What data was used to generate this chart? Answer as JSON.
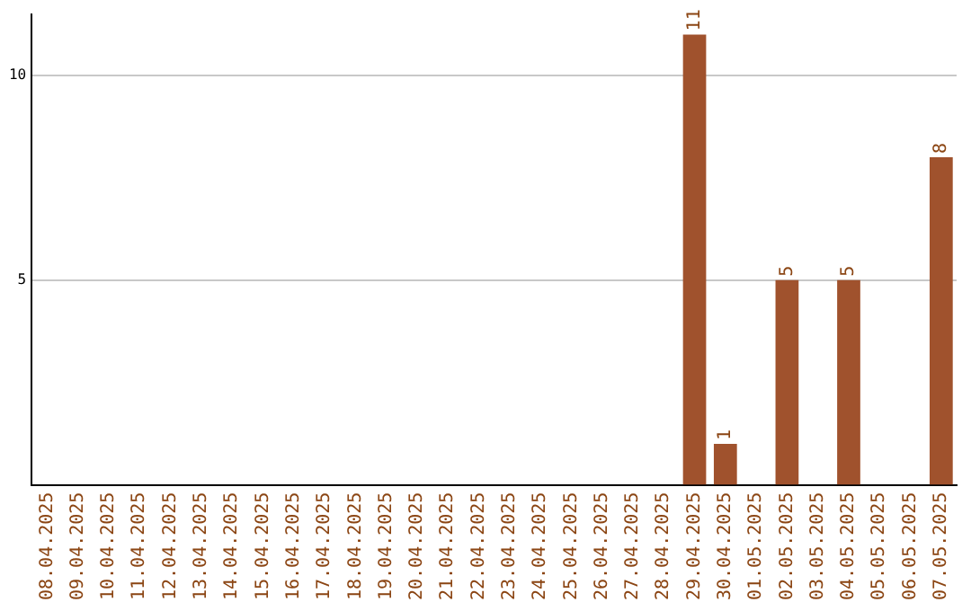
{
  "chart_data": {
    "type": "bar",
    "categories": [
      "08.04.2025",
      "09.04.2025",
      "10.04.2025",
      "11.04.2025",
      "12.04.2025",
      "13.04.2025",
      "14.04.2025",
      "15.04.2025",
      "16.04.2025",
      "17.04.2025",
      "18.04.2025",
      "19.04.2025",
      "20.04.2025",
      "21.04.2025",
      "22.04.2025",
      "23.04.2025",
      "24.04.2025",
      "25.04.2025",
      "26.04.2025",
      "27.04.2025",
      "28.04.2025",
      "29.04.2025",
      "30.04.2025",
      "01.05.2025",
      "02.05.2025",
      "03.05.2025",
      "04.05.2025",
      "05.05.2025",
      "06.05.2025",
      "07.05.2025"
    ],
    "values": [
      0,
      0,
      0,
      0,
      0,
      0,
      0,
      0,
      0,
      0,
      0,
      0,
      0,
      0,
      0,
      0,
      0,
      0,
      0,
      0,
      0,
      11,
      1,
      0,
      5,
      0,
      5,
      0,
      0,
      8
    ],
    "value_labels": [
      null,
      null,
      null,
      null,
      null,
      null,
      null,
      null,
      null,
      null,
      null,
      null,
      null,
      null,
      null,
      null,
      null,
      null,
      null,
      null,
      null,
      "11",
      "1",
      null,
      "5",
      null,
      "5",
      null,
      null,
      "8"
    ],
    "color": "#a0522d",
    "ylim": [
      0,
      11.5
    ],
    "yticks": [
      5,
      10
    ],
    "grid": "y"
  }
}
